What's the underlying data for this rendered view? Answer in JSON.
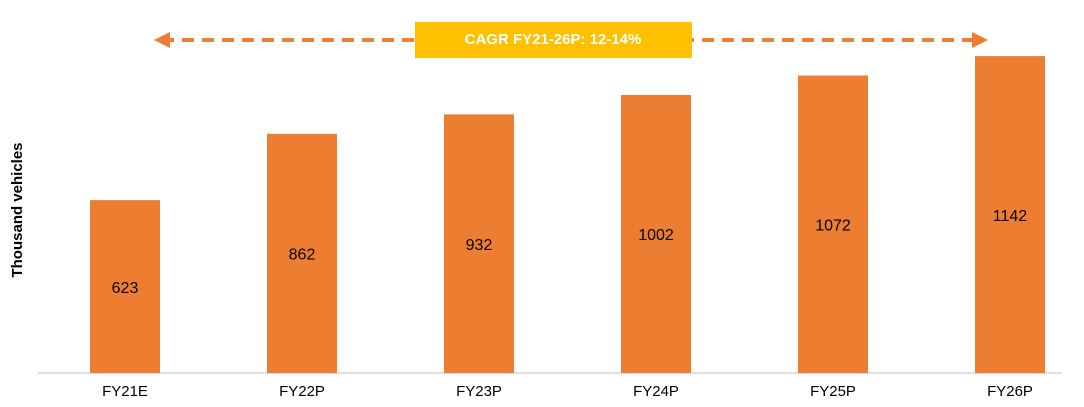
{
  "chart_data": {
    "type": "bar",
    "y_label": "Thousand vehicles",
    "annotation": "CAGR FY21-26P: 12-14%",
    "categories": [
      "FY21E",
      "FY22P",
      "FY23P",
      "FY24P",
      "FY25P",
      "FY26P"
    ],
    "values": [
      623,
      862,
      932,
      1002,
      1072,
      1142
    ],
    "color": "#ED7D31",
    "annotation_color": "#FFC000",
    "ylim": [
      0,
      1200
    ]
  }
}
